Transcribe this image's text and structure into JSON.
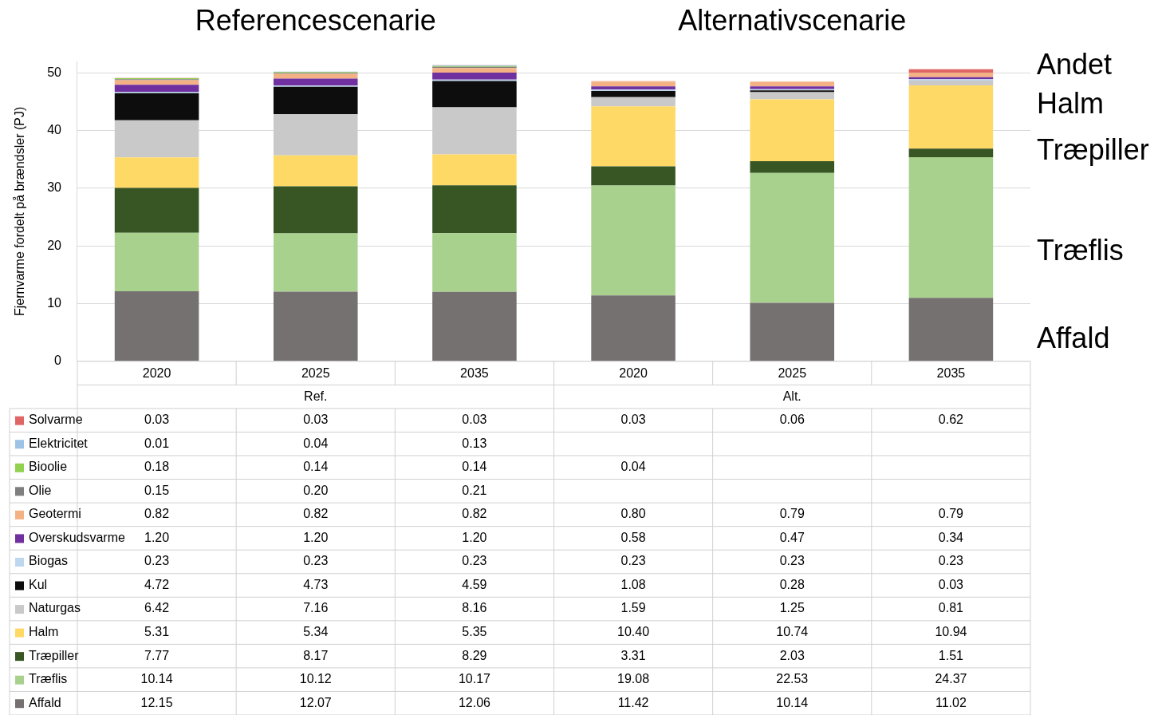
{
  "chart_data": {
    "type": "bar",
    "stacked": true,
    "ylabel": "Fjernvarme fordelt på brændsler (PJ)",
    "categories": [
      "2020",
      "2025",
      "2035",
      "2020",
      "2025",
      "2035"
    ],
    "ylim": [
      0,
      52
    ],
    "yticks": [
      0,
      10,
      20,
      30,
      40,
      50
    ],
    "grid": "y",
    "legend": "bottom",
    "annotations": [
      "Referencescenarie",
      "Alternativscenarie",
      "Ref.",
      "Alt.",
      "Andet",
      "Halm",
      "Træpiller",
      "Træflis",
      "Affald"
    ],
    "series": [
      {
        "name": "Affald",
        "color": "#767171",
        "values": [
          12.15,
          12.07,
          12.06,
          11.42,
          10.14,
          11.02
        ],
        "value_labels": [
          "12.15",
          "12.07",
          "12.06",
          "11.42",
          "10.14",
          "11.02"
        ]
      },
      {
        "name": "Træflis",
        "color": "#a9d18e",
        "values": [
          10.14,
          10.12,
          10.17,
          19.08,
          22.53,
          24.37
        ],
        "value_labels": [
          "10.14",
          "10.12",
          "10.17",
          "19.08",
          "22.53",
          "24.37"
        ]
      },
      {
        "name": "Træpiller",
        "color": "#375623",
        "values": [
          7.77,
          8.17,
          8.29,
          3.31,
          2.03,
          1.51
        ],
        "value_labels": [
          "7.77",
          "8.17",
          "8.29",
          "3.31",
          "2.03",
          "1.51"
        ]
      },
      {
        "name": "Halm",
        "color": "#ffd966",
        "values": [
          5.31,
          5.34,
          5.35,
          10.4,
          10.74,
          10.94
        ],
        "value_labels": [
          "5.31",
          "5.34",
          "5.35",
          "10.40",
          "10.74",
          "10.94"
        ]
      },
      {
        "name": "Naturgas",
        "color": "#c9c9c9",
        "values": [
          6.42,
          7.16,
          8.16,
          1.59,
          1.25,
          0.81
        ],
        "value_labels": [
          "6.42",
          "7.16",
          "8.16",
          "1.59",
          "1.25",
          "0.81"
        ]
      },
      {
        "name": "Kul",
        "color": "#0d0d0d",
        "values": [
          4.72,
          4.73,
          4.59,
          1.08,
          0.28,
          0.03
        ],
        "value_labels": [
          "4.72",
          "4.73",
          "4.59",
          "1.08",
          "0.28",
          "0.03"
        ]
      },
      {
        "name": "Biogas",
        "color": "#bdd7ee",
        "values": [
          0.23,
          0.23,
          0.23,
          0.23,
          0.23,
          0.23
        ],
        "value_labels": [
          "0.23",
          "0.23",
          "0.23",
          "0.23",
          "0.23",
          "0.23"
        ]
      },
      {
        "name": "Overskudsvarme",
        "color": "#7030a0",
        "values": [
          1.2,
          1.2,
          1.2,
          0.58,
          0.47,
          0.34
        ],
        "value_labels": [
          "1.20",
          "1.20",
          "1.20",
          "0.58",
          "0.47",
          "0.34"
        ]
      },
      {
        "name": "Geotermi",
        "color": "#f4b183",
        "values": [
          0.82,
          0.82,
          0.82,
          0.8,
          0.79,
          0.79
        ],
        "value_labels": [
          "0.82",
          "0.82",
          "0.82",
          "0.80",
          "0.79",
          "0.79"
        ]
      },
      {
        "name": "Olie",
        "color": "#7f7f7f",
        "values": [
          0.15,
          0.2,
          0.21,
          null,
          null,
          null
        ],
        "value_labels": [
          "0.15",
          "0.20",
          "0.21",
          null,
          null,
          null
        ]
      },
      {
        "name": "Bioolie",
        "color": "#92d050",
        "values": [
          0.18,
          0.14,
          0.14,
          0.04,
          null,
          null
        ],
        "value_labels": [
          "0.18",
          "0.14",
          "0.14",
          "0.04",
          null,
          null
        ]
      },
      {
        "name": "Elektricitet",
        "color": "#9dc3e6",
        "values": [
          0.01,
          0.04,
          0.13,
          null,
          null,
          null
        ],
        "value_labels": [
          "0.01",
          "0.04",
          "0.13",
          null,
          null,
          null
        ]
      },
      {
        "name": "Solvarme",
        "color": "#e06666",
        "values": [
          0.03,
          0.03,
          0.03,
          0.03,
          0.06,
          0.62
        ],
        "value_labels": [
          "0.03",
          "0.03",
          "0.03",
          "0.03",
          "0.06",
          "0.62"
        ]
      }
    ]
  }
}
